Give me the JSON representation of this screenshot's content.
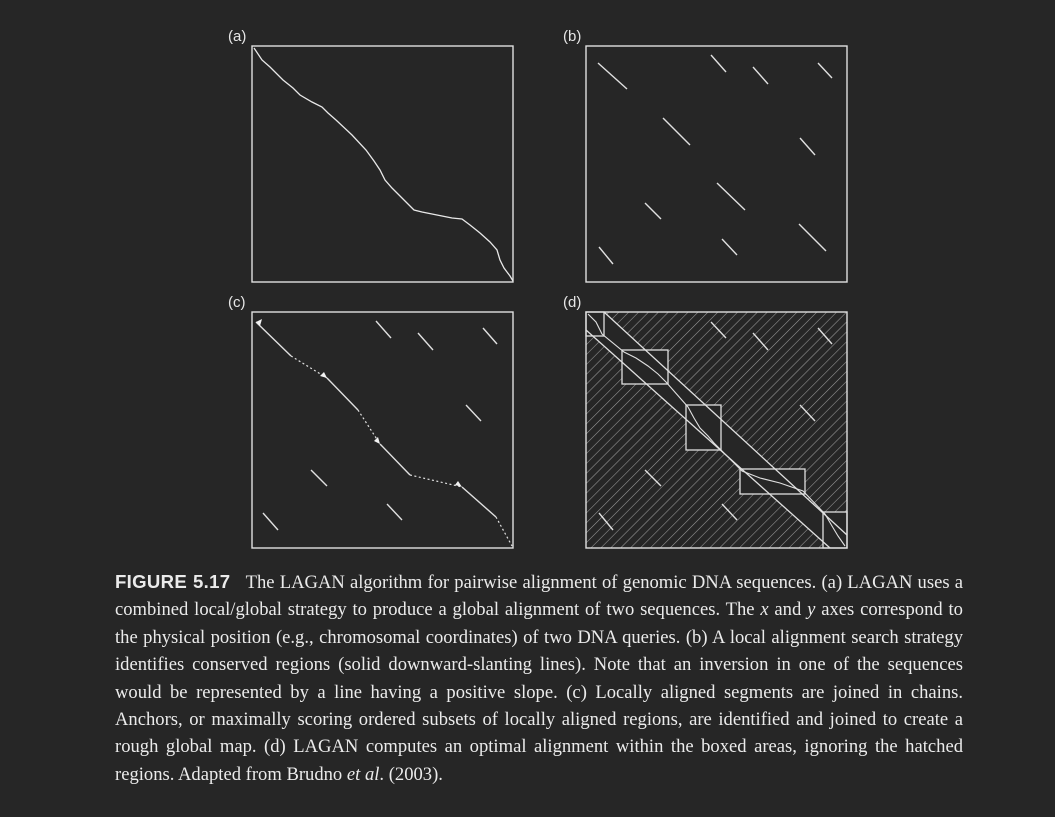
{
  "panels": [
    {
      "label": "(a)"
    },
    {
      "label": "(b)"
    },
    {
      "label": "(c)"
    },
    {
      "label": "(d)"
    }
  ],
  "caption": {
    "figure_label": "FIGURE 5.17",
    "t1": "The LAGAN algorithm for pairwise alignment of genomic DNA sequences. (a) LAGAN uses a combined local/global strategy to produce a global alignment of two sequences. The ",
    "x_var": "x",
    "t2": " and ",
    "y_var": "y",
    "t3": " axes correspond to the physical position (e.g., chromosomal coordinates) of two DNA queries. (b) A local alignment search strategy identifies conserved regions (solid downward-slanting lines). Note that an inversion in one of the sequences would be represented by a line having a positive slope. (c) Locally aligned segments are joined in chains. Anchors, or maximally scoring ordered subsets of locally aligned regions, are identified and joined to create a rough global map. (d) LAGAN computes an optimal alignment within the boxed areas, ignoring the hatched regions. Adapted from Brudno ",
    "et_al": "et al",
    "t4": ". (2003)."
  },
  "colors": {
    "background": "#262626",
    "ink": "#e6e6e6"
  }
}
